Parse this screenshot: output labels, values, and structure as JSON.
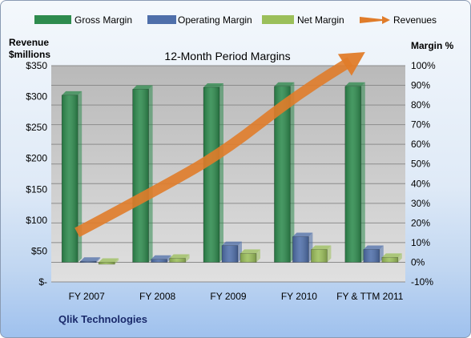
{
  "chart_data": {
    "type": "bar",
    "title": "12-Month Period Margins",
    "company": "Qlik Technologies",
    "y_left_label_line1": "Revenue",
    "y_left_label_line2": "$millions",
    "y_right_label": "Margin %",
    "categories": [
      "FY 2007",
      "FY 2008",
      "FY 2009",
      "FY 2010",
      "FY & TTM 2011"
    ],
    "y_left_ticks": [
      "$-",
      "$50",
      "$100",
      "$150",
      "$200",
      "$250",
      "$300",
      "$350"
    ],
    "y_left_lim": [
      0,
      350
    ],
    "y_right_ticks": [
      "-10%",
      "0%",
      "10%",
      "20%",
      "30%",
      "40%",
      "50%",
      "60%",
      "70%",
      "80%",
      "90%",
      "100%"
    ],
    "y_right_lim": [
      -10,
      100
    ],
    "grid": true,
    "legend_position": "top",
    "series": [
      {
        "name": "Gross Margin",
        "axis": "right",
        "color": "#2e8b4e",
        "values": [
          85,
          88,
          89,
          89.5,
          89.5
        ]
      },
      {
        "name": "Operating Margin",
        "axis": "right",
        "color": "#4f6faa",
        "values": [
          0.5,
          1.5,
          8.5,
          13,
          6.5
        ]
      },
      {
        "name": "Net Margin",
        "axis": "right",
        "color": "#9bbf5a",
        "values": [
          -1,
          2,
          4.5,
          6.5,
          2.5
        ]
      }
    ],
    "revenue_series": {
      "name": "Revenues",
      "axis": "left",
      "color": "#e07c2a",
      "values": [
        80,
        145,
        210,
        300,
        372
      ]
    }
  }
}
